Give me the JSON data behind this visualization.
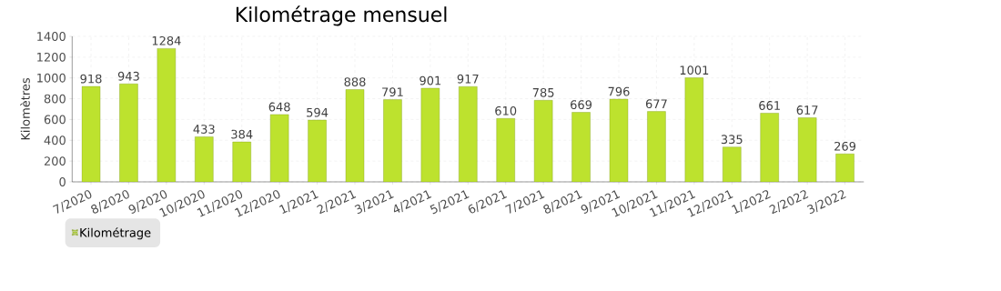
{
  "chart_data": {
    "type": "bar",
    "title": "Kilométrage mensuel",
    "ylabel": "Kilomètres",
    "categories": [
      "7/2020",
      "8/2020",
      "9/2020",
      "10/2020",
      "11/2020",
      "12/2020",
      "1/2021",
      "2/2021",
      "3/2021",
      "4/2021",
      "5/2021",
      "6/2021",
      "7/2021",
      "8/2021",
      "9/2021",
      "10/2021",
      "11/2021",
      "12/2021",
      "1/2022",
      "2/2022",
      "3/2022"
    ],
    "series": [
      {
        "name": "Kilométrage",
        "color": "#bde22e",
        "values": [
          918,
          943,
          1284,
          433,
          384,
          648,
          594,
          888,
          791,
          901,
          917,
          610,
          785,
          669,
          796,
          677,
          1001,
          335,
          661,
          617,
          269
        ]
      }
    ],
    "ylim": [
      0,
      1400
    ],
    "yticks": [
      0,
      200,
      400,
      600,
      800,
      1000,
      1200,
      1400
    ],
    "grid": true,
    "legend": "bottom left",
    "data_labels": true
  }
}
